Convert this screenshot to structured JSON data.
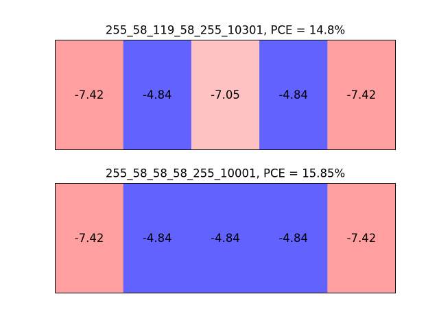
{
  "chart_data": [
    {
      "type": "heatmap",
      "title": "255_58_119_58_255_10301, PCE = 14.8%",
      "cells": [
        {
          "label": "-7.42",
          "value": -7.42,
          "color": "#ff9f9f"
        },
        {
          "label": "-4.84",
          "value": -4.84,
          "color": "#6262ff"
        },
        {
          "label": "-7.05",
          "value": -7.05,
          "color": "#ffc2c2"
        },
        {
          "label": "-4.84",
          "value": -4.84,
          "color": "#6262ff"
        },
        {
          "label": "-7.42",
          "value": -7.42,
          "color": "#ff9f9f"
        }
      ],
      "grid": false
    },
    {
      "type": "heatmap",
      "title": "255_58_58_58_255_10001, PCE = 15.85%",
      "cells": [
        {
          "label": "-7.42",
          "value": -7.42,
          "color": "#ff9f9f"
        },
        {
          "label": "-4.84",
          "value": -4.84,
          "color": "#6262ff"
        },
        {
          "label": "-4.84",
          "value": -4.84,
          "color": "#6262ff"
        },
        {
          "label": "-4.84",
          "value": -4.84,
          "color": "#6262ff"
        },
        {
          "label": "-7.42",
          "value": -7.42,
          "color": "#ff9f9f"
        }
      ],
      "grid": false
    }
  ]
}
